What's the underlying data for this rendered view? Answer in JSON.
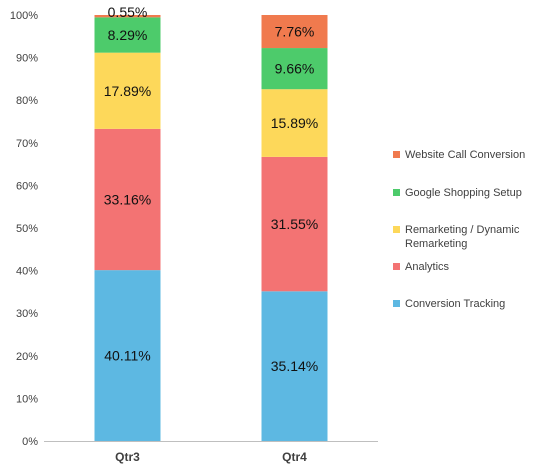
{
  "chart_data": {
    "type": "bar",
    "stacked": true,
    "categories": [
      "Qtr3",
      "Qtr4"
    ],
    "series": [
      {
        "name": "Conversion Tracking",
        "values": [
          40.11,
          35.14
        ],
        "labels": [
          "40.11%",
          "35.14%"
        ],
        "color": "#5DB8E2"
      },
      {
        "name": "Analytics",
        "values": [
          33.16,
          31.55
        ],
        "labels": [
          "33.16%",
          "31.55%"
        ],
        "color": "#F37373"
      },
      {
        "name": "Remarketing / Dynamic Remarketing",
        "values": [
          17.89,
          15.89
        ],
        "labels": [
          "17.89%",
          "15.89%"
        ],
        "color": "#FDD85A"
      },
      {
        "name": "Google Shopping Setup",
        "values": [
          8.29,
          9.66
        ],
        "labels": [
          "8.29%",
          "9.66%"
        ],
        "color": "#4DCB6B"
      },
      {
        "name": "Website Call Conversion",
        "values": [
          0.55,
          7.76
        ],
        "labels": [
          "0.55%",
          "7.76%"
        ],
        "color": "#F07A4E"
      }
    ],
    "yticks": [
      "0%",
      "10%",
      "20%",
      "30%",
      "40%",
      "50%",
      "60%",
      "70%",
      "80%",
      "90%",
      "100%"
    ],
    "ylim": [
      0,
      100
    ],
    "title": "",
    "xlabel": "",
    "ylabel": "",
    "grid": false,
    "legend_position": "right"
  },
  "legend": {
    "items": [
      {
        "label": "Website Call Conversion",
        "color": "#F07A4E"
      },
      {
        "label": "Google Shopping Setup",
        "color": "#4DCB6B"
      },
      {
        "label": "Remarketing / Dynamic Remarketing",
        "color": "#FDD85A"
      },
      {
        "label": "Analytics",
        "color": "#F37373"
      },
      {
        "label": "Conversion Tracking",
        "color": "#5DB8E2"
      }
    ]
  }
}
